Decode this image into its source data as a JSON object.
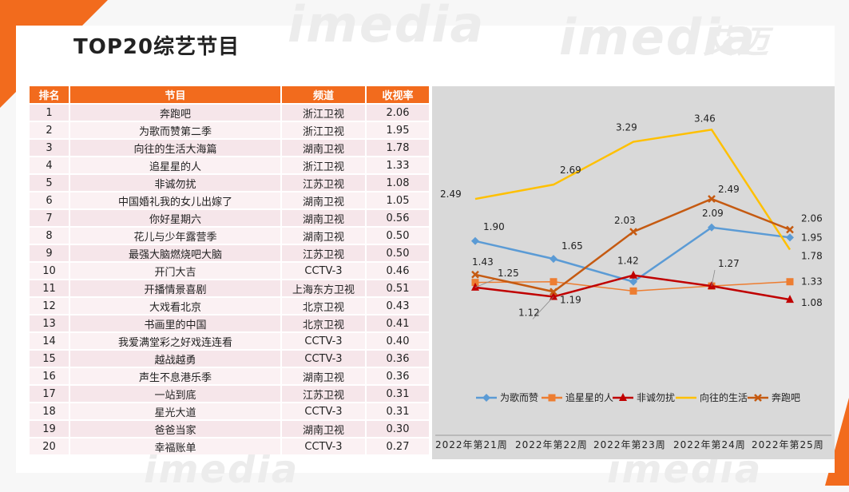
{
  "title": "TOP20综艺节目",
  "watermarks": [
    "imedia",
    "艾迈"
  ],
  "table": {
    "headers": [
      "排名",
      "节目",
      "频道",
      "收视率"
    ],
    "rows": [
      [
        "1",
        "奔跑吧",
        "浙江卫视",
        "2.06"
      ],
      [
        "2",
        "为歌而赞第二季",
        "浙江卫视",
        "1.95"
      ],
      [
        "3",
        "向往的生活大海篇",
        "湖南卫视",
        "1.78"
      ],
      [
        "4",
        "追星星的人",
        "浙江卫视",
        "1.33"
      ],
      [
        "5",
        "非诚勿扰",
        "江苏卫视",
        "1.08"
      ],
      [
        "6",
        "中国婚礼我的女儿出嫁了",
        "湖南卫视",
        "1.05"
      ],
      [
        "7",
        "你好星期六",
        "湖南卫视",
        "0.56"
      ],
      [
        "8",
        "花儿与少年露营季",
        "湖南卫视",
        "0.50"
      ],
      [
        "9",
        "最强大脑燃烧吧大脑",
        "江苏卫视",
        "0.50"
      ],
      [
        "10",
        "开门大吉",
        "CCTV-3",
        "0.46"
      ],
      [
        "11",
        "开播情景喜剧",
        "上海东方卫视",
        "0.51"
      ],
      [
        "12",
        "大戏看北京",
        "北京卫视",
        "0.43"
      ],
      [
        "13",
        "书画里的中国",
        "北京卫视",
        "0.41"
      ],
      [
        "14",
        "我爱满堂彩之好戏连连看",
        "CCTV-3",
        "0.40"
      ],
      [
        "15",
        "越战越勇",
        "CCTV-3",
        "0.36"
      ],
      [
        "16",
        "声生不息港乐季",
        "湖南卫视",
        "0.36"
      ],
      [
        "17",
        "一站到底",
        "江苏卫视",
        "0.31"
      ],
      [
        "18",
        "星光大道",
        "CCTV-3",
        "0.31"
      ],
      [
        "19",
        "爸爸当家",
        "湖南卫视",
        "0.30"
      ],
      [
        "20",
        "幸福账单",
        "CCTV-3",
        "0.27"
      ]
    ]
  },
  "chart_data": {
    "type": "line",
    "title": "",
    "xlabel": "",
    "ylabel": "",
    "categories": [
      "2022年第21周",
      "2022年第22周",
      "2022年第23周",
      "2022年第24周",
      "2022年第25周"
    ],
    "ylim": [
      0.6,
      3.9
    ],
    "grid": false,
    "legend_position": "bottom",
    "series": [
      {
        "name": "为歌而赞",
        "color": "#5b9bd5",
        "marker": "diamond",
        "values": [
          1.9,
          1.65,
          null,
          2.09,
          1.95
        ],
        "labels": [
          "1.90",
          "1.65",
          "",
          "2.09",
          "1.95"
        ],
        "underlying": [
          1.9,
          1.65,
          1.33,
          2.09,
          1.95
        ]
      },
      {
        "name": "追星星的人",
        "color": "#ed7d31",
        "marker": "square",
        "values": [
          1.32,
          1.33,
          1.2,
          1.27,
          1.33
        ],
        "labels": [
          "",
          "",
          "",
          "",
          "1.33"
        ]
      },
      {
        "name": "非诚勿扰",
        "color": "#c00000",
        "marker": "triangle",
        "values": [
          1.25,
          1.12,
          1.42,
          1.27,
          1.08
        ],
        "labels": [
          "1.25",
          "1.12",
          "1.42",
          "1.27",
          "1.08"
        ]
      },
      {
        "name": "向往的生活",
        "color": "#ffc000",
        "marker": "none",
        "values": [
          2.49,
          2.69,
          3.29,
          3.46,
          1.78
        ],
        "labels": [
          "2.49",
          "2.69",
          "3.29",
          "3.46",
          "1.78"
        ]
      },
      {
        "name": "奔跑吧",
        "color": "#c55a11",
        "marker": "x",
        "values": [
          1.43,
          1.19,
          2.03,
          2.49,
          2.06
        ],
        "labels": [
          "1.43",
          "1.19",
          "2.03",
          "2.49",
          "2.06"
        ]
      }
    ]
  }
}
